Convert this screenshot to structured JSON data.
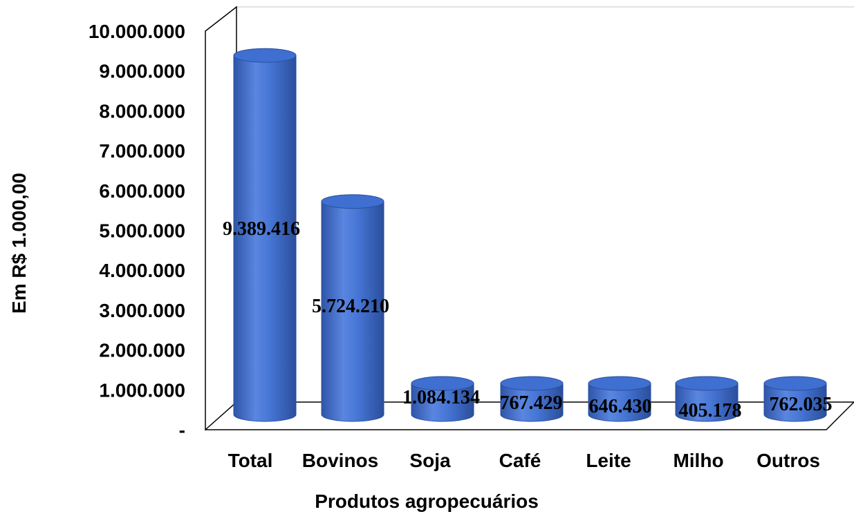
{
  "chart_data": {
    "type": "bar",
    "title": "",
    "xlabel": "Produtos agropecuários",
    "ylabel": "Em R$ 1.000,00",
    "categories": [
      "Total",
      "Bovinos",
      "Soja",
      "Café",
      "Leite",
      "Milho",
      "Outros"
    ],
    "values": [
      9389416,
      5724210,
      1084134,
      767429,
      646430,
      405178,
      762035
    ],
    "data_labels": [
      "9.389.416",
      "5.724.210",
      "1.084.134",
      "767.429",
      "646.430",
      "405.178",
      "762.035"
    ],
    "ylim": [
      0,
      10000000
    ],
    "y_ticks": [
      0,
      1000000,
      2000000,
      3000000,
      4000000,
      5000000,
      6000000,
      7000000,
      8000000,
      9000000,
      10000000
    ],
    "y_tick_labels": [
      "-",
      "1.000.000",
      "2.000.000",
      "3.000.000",
      "4.000.000",
      "5.000.000",
      "6.000.000",
      "7.000.000",
      "8.000.000",
      "9.000.000",
      "10.000.000"
    ],
    "style": "3d-cylinder",
    "bar_color": "#3F6FD0",
    "bar_color_light": "#6A93E6",
    "bar_color_dark": "#2E55A8",
    "grid": false,
    "legend": "none"
  }
}
